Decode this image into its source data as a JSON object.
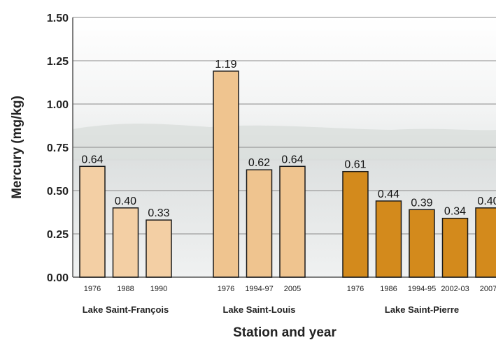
{
  "chart_data": {
    "type": "bar",
    "xlabel": "Station and year",
    "ylabel": "Mercury (mg/kg)",
    "ylim": [
      0,
      1.5
    ],
    "yticks": [
      "0.00",
      "0.25",
      "0.50",
      "0.75",
      "1.00",
      "1.25",
      "1.50"
    ],
    "grid": true,
    "groups": [
      {
        "name": "Lake Saint-François",
        "color": "#f3cfa4",
        "categories": [
          "1976",
          "1988",
          "1990"
        ],
        "values": [
          0.64,
          0.4,
          0.33
        ],
        "labels": [
          "0.64",
          "0.40",
          "0.33"
        ]
      },
      {
        "name": "Lake Saint-Louis",
        "color": "#efc48f",
        "categories": [
          "1976",
          "1994-97",
          "2005"
        ],
        "values": [
          1.19,
          0.62,
          0.64
        ],
        "labels": [
          "1.19",
          "0.62",
          "0.64"
        ]
      },
      {
        "name": "Lake Saint-Pierre",
        "color": "#d38a1c",
        "categories": [
          "1976",
          "1986",
          "1994-95",
          "2002-03",
          "2007"
        ],
        "values": [
          0.61,
          0.44,
          0.39,
          0.34,
          0.4
        ],
        "labels": [
          "0.61",
          "0.44",
          "0.39",
          "0.34",
          "0.40"
        ]
      }
    ]
  }
}
